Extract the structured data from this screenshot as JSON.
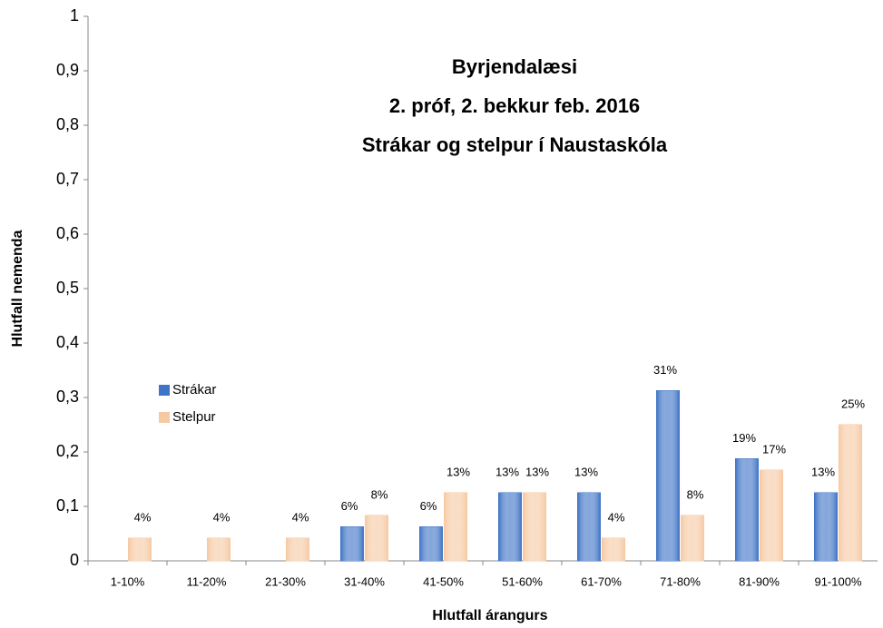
{
  "chart_data": {
    "type": "bar",
    "title": [
      "Byrjendalæsi",
      "2. próf, 2. bekkur feb. 2016",
      "Strákar og stelpur í Naustaskóla"
    ],
    "x_label": "Hlutfall árangurs",
    "y_label": "Hlutfall nemenda",
    "categories": [
      "1-10%",
      "11-20%",
      "21-30%",
      "31-40%",
      "41-50%",
      "51-60%",
      "61-70%",
      "71-80%",
      "81-90%",
      "91-100%"
    ],
    "series": [
      {
        "name": "Strákar",
        "color": "#3f74c6",
        "values": [
          null,
          null,
          null,
          0.0625,
          0.0625,
          0.125,
          0.125,
          0.3125,
          0.1875,
          0.125
        ],
        "value_labels": [
          null,
          null,
          null,
          "6%",
          "6%",
          "13%",
          "13%",
          "31%",
          "19%",
          "13%"
        ]
      },
      {
        "name": "Stelpur",
        "color": "#f6c9a3",
        "values": [
          0.0417,
          0.0417,
          0.0417,
          0.0833,
          0.125,
          0.125,
          0.0417,
          0.0833,
          0.1667,
          0.25
        ],
        "value_labels": [
          "4%",
          "4%",
          "4%",
          "8%",
          "13%",
          "13%",
          "4%",
          "8%",
          "17%",
          "25%"
        ]
      }
    ],
    "ylim": [
      0,
      1
    ],
    "yticks": [
      0,
      {
        "value": 0.1,
        "label": "0,1"
      },
      {
        "value": 0.2,
        "label": "0,2"
      },
      {
        "value": 0.3,
        "label": "0,3"
      },
      {
        "value": 0.4,
        "label": "0,4"
      },
      {
        "value": 0.5,
        "label": "0,5"
      },
      {
        "value": 0.6,
        "label": "0,6"
      },
      {
        "value": 0.7,
        "label": "0,7"
      },
      {
        "value": 0.8,
        "label": "0,8"
      },
      {
        "value": 0.9,
        "label": "0,9"
      },
      1
    ],
    "grid": false,
    "legend": "left"
  }
}
